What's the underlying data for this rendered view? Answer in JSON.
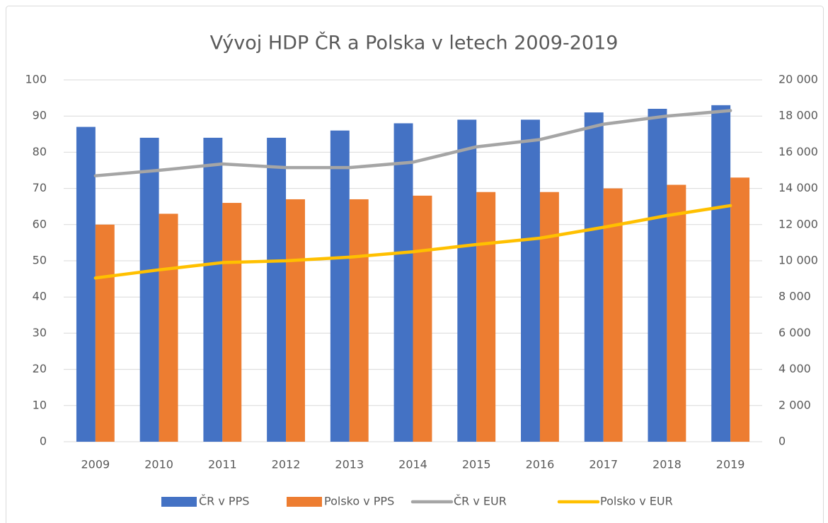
{
  "chart_data": {
    "type": "combo",
    "title": "Vývoj HDP ČR a Polska v letech 2009-2019",
    "categories": [
      "2009",
      "2010",
      "2011",
      "2012",
      "2013",
      "2014",
      "2015",
      "2016",
      "2017",
      "2018",
      "2019"
    ],
    "series": [
      {
        "name": "ČR v PPS",
        "type": "bar",
        "color": "#4472c4",
        "values": [
          87,
          84,
          84,
          84,
          86,
          88,
          89,
          89,
          91,
          92,
          93
        ]
      },
      {
        "name": "Polsko v PPS",
        "type": "bar",
        "color": "#ed7d31",
        "values": [
          60,
          63,
          66,
          67,
          67,
          68,
          69,
          69,
          70,
          71,
          73
        ]
      },
      {
        "name": "ČR v EUR",
        "type": "line",
        "axis": "y2",
        "color": "#a5a5a5",
        "values": [
          14700,
          15000,
          15350,
          15150,
          15150,
          15450,
          16300,
          16700,
          17550,
          18000,
          18300
        ]
      },
      {
        "name": "Polsko v EUR",
        "type": "line",
        "axis": "y2",
        "color": "#ffc000",
        "values": [
          9050,
          9500,
          9900,
          10000,
          10200,
          10500,
          10900,
          11250,
          11850,
          12500,
          13050
        ]
      }
    ],
    "ylim": [
      0,
      100
    ],
    "yticks": [
      0,
      10,
      20,
      30,
      40,
      50,
      60,
      70,
      80,
      90,
      100
    ],
    "y2lim": [
      0,
      20000
    ],
    "y2ticks": [
      0,
      {
        "value": 2000,
        "label": "2 000"
      },
      {
        "value": 4000,
        "label": "4 000"
      },
      {
        "value": 6000,
        "label": "6 000"
      },
      {
        "value": 8000,
        "label": "8 000"
      },
      {
        "value": 10000,
        "label": "10 000"
      },
      {
        "value": 12000,
        "label": "12 000"
      },
      {
        "value": 14000,
        "label": "14 000"
      },
      {
        "value": 16000,
        "label": "16 000"
      },
      {
        "value": 18000,
        "label": "18 000"
      },
      {
        "value": 20000,
        "label": "20 000"
      }
    ],
    "grid": true,
    "legend": "bottom"
  }
}
